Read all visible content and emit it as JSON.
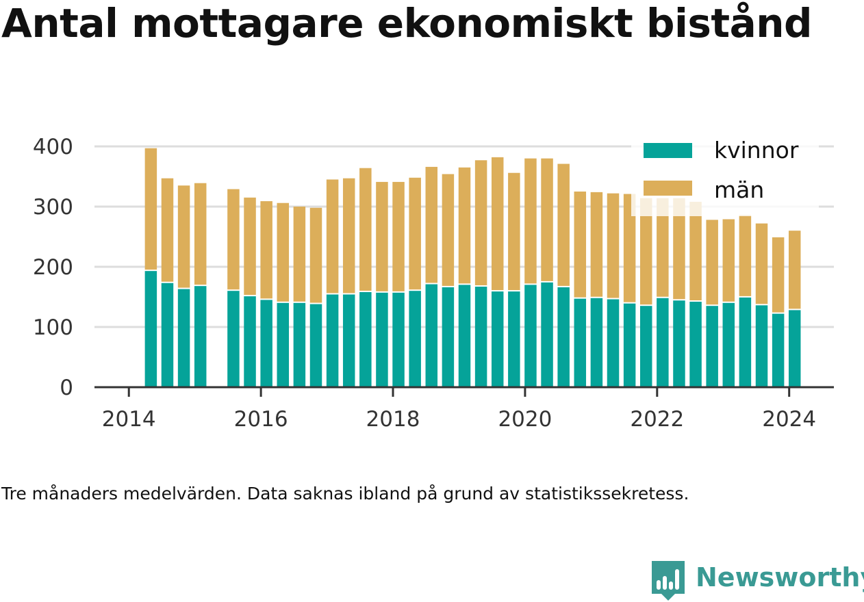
{
  "title": "Antal mottagare ekonomiskt bistånd",
  "note": "Tre månaders medelvärden. Data saknas ibland på grund av statistikssekretess.",
  "brand": {
    "name": "Newsworthy",
    "color": "#3a9a94",
    "icon": "newsworthy-logo-icon"
  },
  "chart_data": {
    "type": "bar",
    "stacked": true,
    "x_unit": "month",
    "x": [
      "2014-05",
      "2014-08",
      "2014-11",
      "2015-02",
      "2015-08",
      "2015-11",
      "2016-02",
      "2016-05",
      "2016-08",
      "2016-11",
      "2017-02",
      "2017-05",
      "2017-08",
      "2017-11",
      "2018-02",
      "2018-05",
      "2018-08",
      "2018-11",
      "2019-02",
      "2019-05",
      "2019-08",
      "2019-11",
      "2020-02",
      "2020-05",
      "2020-08",
      "2020-11",
      "2021-02",
      "2021-05",
      "2021-08",
      "2021-11",
      "2022-02",
      "2022-05",
      "2022-08",
      "2022-11",
      "2023-02",
      "2023-05",
      "2023-08",
      "2023-11",
      "2024-02"
    ],
    "series": [
      {
        "name": "kvinnor",
        "color": "#05a399",
        "values": [
          193,
          173,
          163,
          168,
          160,
          151,
          145,
          140,
          140,
          138,
          154,
          154,
          158,
          157,
          157,
          160,
          171,
          166,
          170,
          167,
          159,
          159,
          170,
          174,
          166,
          147,
          148,
          146,
          139,
          135,
          148,
          144,
          142,
          135,
          140,
          149,
          136,
          122,
          128
        ]
      },
      {
        "name": "män",
        "color": "#dcae5a",
        "values": [
          204,
          174,
          172,
          171,
          169,
          164,
          164,
          166,
          160,
          160,
          191,
          193,
          206,
          184,
          184,
          188,
          195,
          188,
          195,
          210,
          223,
          197,
          210,
          206,
          205,
          178,
          176,
          176,
          182,
          179,
          166,
          170,
          166,
          143,
          139,
          137,
          136,
          127,
          132
        ]
      }
    ],
    "xlim": [
      "2013-07",
      "2024-09"
    ],
    "xticks": [
      "2014",
      "2016",
      "2018",
      "2020",
      "2022",
      "2024"
    ],
    "ylim": [
      0,
      400
    ],
    "yticks": [
      0,
      100,
      200,
      300,
      400
    ],
    "grid": true,
    "legend_position": "top-right",
    "xlabel": "",
    "ylabel": ""
  }
}
